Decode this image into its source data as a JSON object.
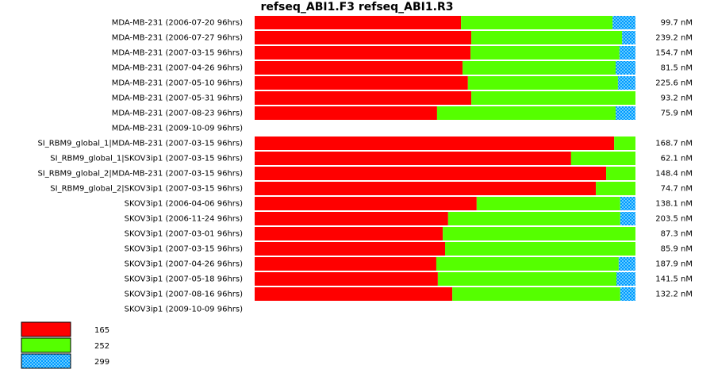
{
  "chart_data": {
    "type": "stacked-bar-horizontal",
    "title": "refseq_ABI1.F3  refseq_ABI1.R3",
    "categories": [
      "MDA-MB-231 (2006-07-20 96hrs)",
      "MDA-MB-231 (2006-07-27 96hrs)",
      "MDA-MB-231 (2007-03-15 96hrs)",
      "MDA-MB-231 (2007-04-26 96hrs)",
      "MDA-MB-231 (2007-05-10 96hrs)",
      "MDA-MB-231 (2007-05-31 96hrs)",
      "MDA-MB-231 (2007-08-23 96hrs)",
      "MDA-MB-231 (2009-10-09 96hrs)",
      "SI_RBM9_global_1|MDA-MB-231 (2007-03-15 96hrs)",
      "SI_RBM9_global_1|SKOV3ip1 (2007-03-15 96hrs)",
      "SI_RBM9_global_2|MDA-MB-231 (2007-03-15 96hrs)",
      "SI_RBM9_global_2|SKOV3ip1 (2007-03-15 96hrs)",
      "SKOV3ip1 (2006-04-06 96hrs)",
      "SKOV3ip1 (2006-11-24 96hrs)",
      "SKOV3ip1 (2007-03-01 96hrs)",
      "SKOV3ip1 (2007-03-15 96hrs)",
      "SKOV3ip1 (2007-04-26 96hrs)",
      "SKOV3ip1 (2007-05-18 96hrs)",
      "SKOV3ip1 (2007-08-16 96hrs)",
      "SKOV3ip1 (2009-10-09 96hrs)"
    ],
    "xlim": [
      0,
      100
    ],
    "series": [
      {
        "name": "165",
        "color": "#ff0000",
        "values": [
          54.2,
          56.9,
          56.7,
          54.6,
          56.0,
          56.9,
          47.9,
          null,
          94.4,
          83.1,
          92.3,
          89.6,
          58.3,
          50.8,
          49.4,
          50.0,
          47.7,
          48.1,
          51.9,
          null
        ]
      },
      {
        "name": "252",
        "color": "#55ff00",
        "values": [
          39.8,
          39.6,
          39.1,
          40.2,
          39.4,
          43.1,
          46.9,
          null,
          5.6,
          16.9,
          7.7,
          10.4,
          37.7,
          45.2,
          50.6,
          50.0,
          47.9,
          46.9,
          44.1,
          null
        ]
      },
      {
        "name": "299",
        "color": "#0099ff",
        "hatched": true,
        "values": [
          6.0,
          3.5,
          4.2,
          5.2,
          4.6,
          0,
          5.2,
          null,
          0,
          0,
          0,
          0,
          4.0,
          4.0,
          0,
          0,
          4.4,
          5.0,
          4.0,
          null
        ]
      }
    ],
    "row_labels": [
      "99.7 nM",
      "239.2 nM",
      "154.7 nM",
      "81.5 nM",
      "225.6 nM",
      "93.2 nM",
      "75.9 nM",
      null,
      "168.7 nM",
      "62.1 nM",
      "148.4 nM",
      "74.7 nM",
      "138.1 nM",
      "203.5 nM",
      "87.3 nM",
      "85.9 nM",
      "187.9 nM",
      "141.5 nM",
      "132.2 nM",
      null
    ]
  }
}
